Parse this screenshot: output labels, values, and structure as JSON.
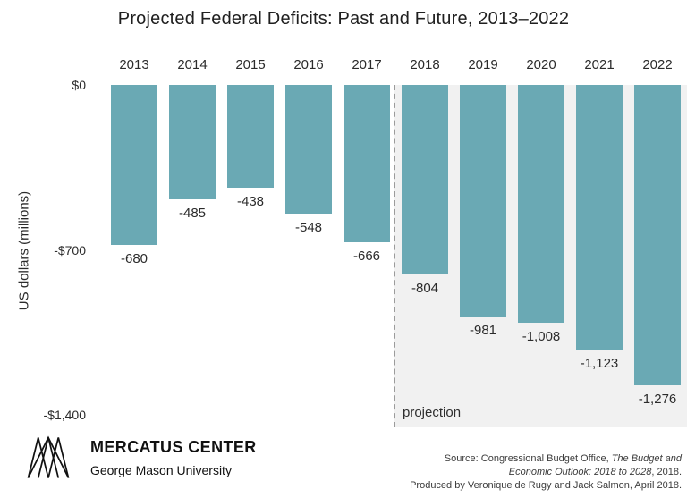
{
  "title": "Projected Federal Deficits: Past and Future, 2013–2022",
  "chart_data": {
    "type": "bar",
    "categories": [
      "2013",
      "2014",
      "2015",
      "2016",
      "2017",
      "2018",
      "2019",
      "2020",
      "2021",
      "2022"
    ],
    "values": [
      -680,
      -485,
      -438,
      -548,
      -666,
      -804,
      -981,
      -1008,
      -1123,
      -1276
    ],
    "value_labels": [
      "-680",
      "-485",
      "-438",
      "-548",
      "-666",
      "-804",
      "-981",
      "-1,008",
      "-1,123",
      "-1,276"
    ],
    "title": "Projected Federal Deficits: Past and Future, 2013–2022",
    "xlabel": "",
    "ylabel": "US dollars (millions)",
    "ylim": [
      -1400,
      0
    ],
    "yticks": [
      {
        "label": "$0",
        "value": 0
      },
      {
        "label": "-$700",
        "value": -700
      },
      {
        "label": "-$1,400",
        "value": -1400
      }
    ],
    "projection_start_category": "2018",
    "projection_label": "projection",
    "bar_color": "#6AA9B4",
    "projection_bg_color": "#F1F1F1",
    "grid": false,
    "legend": false
  },
  "footer": {
    "logo_title": "MERCATUS CENTER",
    "logo_subtitle": "George Mason University",
    "source_line1_normal": "Source: Congressional Budget Office, ",
    "source_line1_italic": "The Budget and",
    "source_line2_italic": "Economic Outlook: 2018 to 2028",
    "source_line2_normal": ", 2018.",
    "source_line3": "Produced by Veronique de Rugy and Jack Salmon, April 2018."
  }
}
